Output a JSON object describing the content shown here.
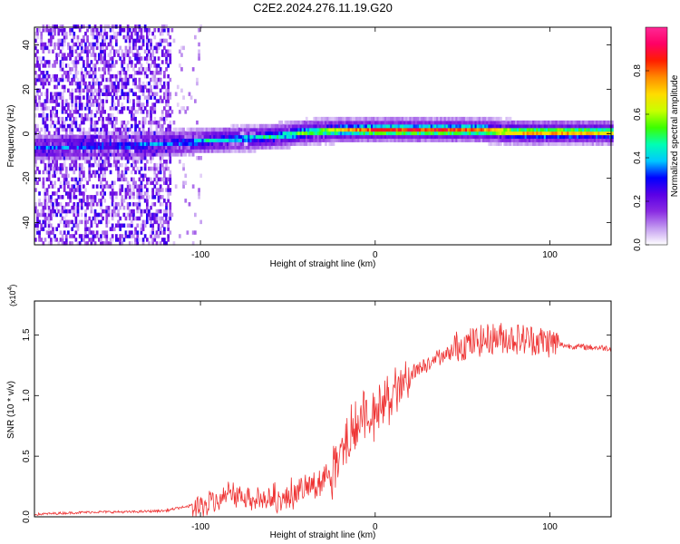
{
  "title": "C2E2.2024.276.11.19.G20",
  "chart_data": [
    {
      "type": "heatmap",
      "xlabel": "Height of straight line (km)",
      "ylabel": "Frequency (Hz)",
      "xlim": [
        -195,
        135
      ],
      "ylim": [
        -50,
        48
      ],
      "x_ticks": [
        -100,
        0,
        100
      ],
      "y_ticks": [
        -40,
        -20,
        0,
        20,
        40
      ],
      "grid": false,
      "colorbar": {
        "label": "Normalized spectral amplitude",
        "range": [
          0,
          1
        ],
        "ticks": [
          "0.0",
          "0.2",
          "0.4",
          "0.6",
          "0.8"
        ],
        "colors": [
          "#ffffff",
          "#c39bf0",
          "#8a2be2",
          "#5a00e6",
          "#0000ff",
          "#00c8ff",
          "#00ffb4",
          "#3cff00",
          "#c8ff00",
          "#ffdc00",
          "#ff8c00",
          "#ff1e00",
          "#ff0064",
          "#ff2896"
        ]
      },
      "ridge_x": [
        -190,
        -160,
        -140,
        -120,
        -100,
        -80,
        -60,
        -40,
        -20,
        0,
        20,
        40,
        60,
        80,
        100,
        120,
        135
      ],
      "ridge_y": [
        -7,
        -6,
        -6,
        -5,
        -4,
        -3,
        -2,
        0,
        1,
        1,
        1,
        1,
        1,
        0,
        0,
        0,
        0
      ],
      "ridge_level": [
        0.35,
        0.35,
        0.4,
        0.35,
        0.45,
        0.45,
        0.5,
        0.6,
        0.75,
        0.9,
        0.9,
        0.9,
        0.85,
        0.8,
        0.85,
        0.8,
        0.75
      ]
    },
    {
      "type": "line",
      "xlabel": "Height of straight line (km)",
      "ylabel": "SNR (10 * v/v)",
      "y_multiplier": "(x10",
      "y_multiplier_exp": "4",
      "xlim": [
        -195,
        135
      ],
      "ylim": [
        0,
        1.78
      ],
      "x_ticks": [
        -100,
        0,
        100
      ],
      "y_ticks": [
        "0.0",
        "0.5",
        "1.0",
        "1.5"
      ],
      "grid": false,
      "series": [
        {
          "color": "#ee3333",
          "x": [
            -195,
            -180,
            -160,
            -140,
            -120,
            -110,
            -100,
            -90,
            -80,
            -70,
            -60,
            -50,
            -40,
            -30,
            -25,
            -20,
            -15,
            -10,
            -5,
            0,
            5,
            10,
            15,
            20,
            30,
            40,
            50,
            60,
            70,
            80,
            90,
            100,
            110,
            120,
            135
          ],
          "y": [
            0.02,
            0.03,
            0.04,
            0.04,
            0.05,
            0.08,
            0.12,
            0.18,
            0.25,
            0.2,
            0.18,
            0.22,
            0.28,
            0.35,
            0.45,
            0.55,
            0.75,
            0.85,
            0.95,
            0.9,
            1.0,
            1.08,
            1.15,
            1.22,
            1.3,
            1.38,
            1.42,
            1.45,
            1.48,
            1.47,
            1.46,
            1.44,
            1.41,
            1.4,
            1.39
          ]
        }
      ]
    }
  ]
}
